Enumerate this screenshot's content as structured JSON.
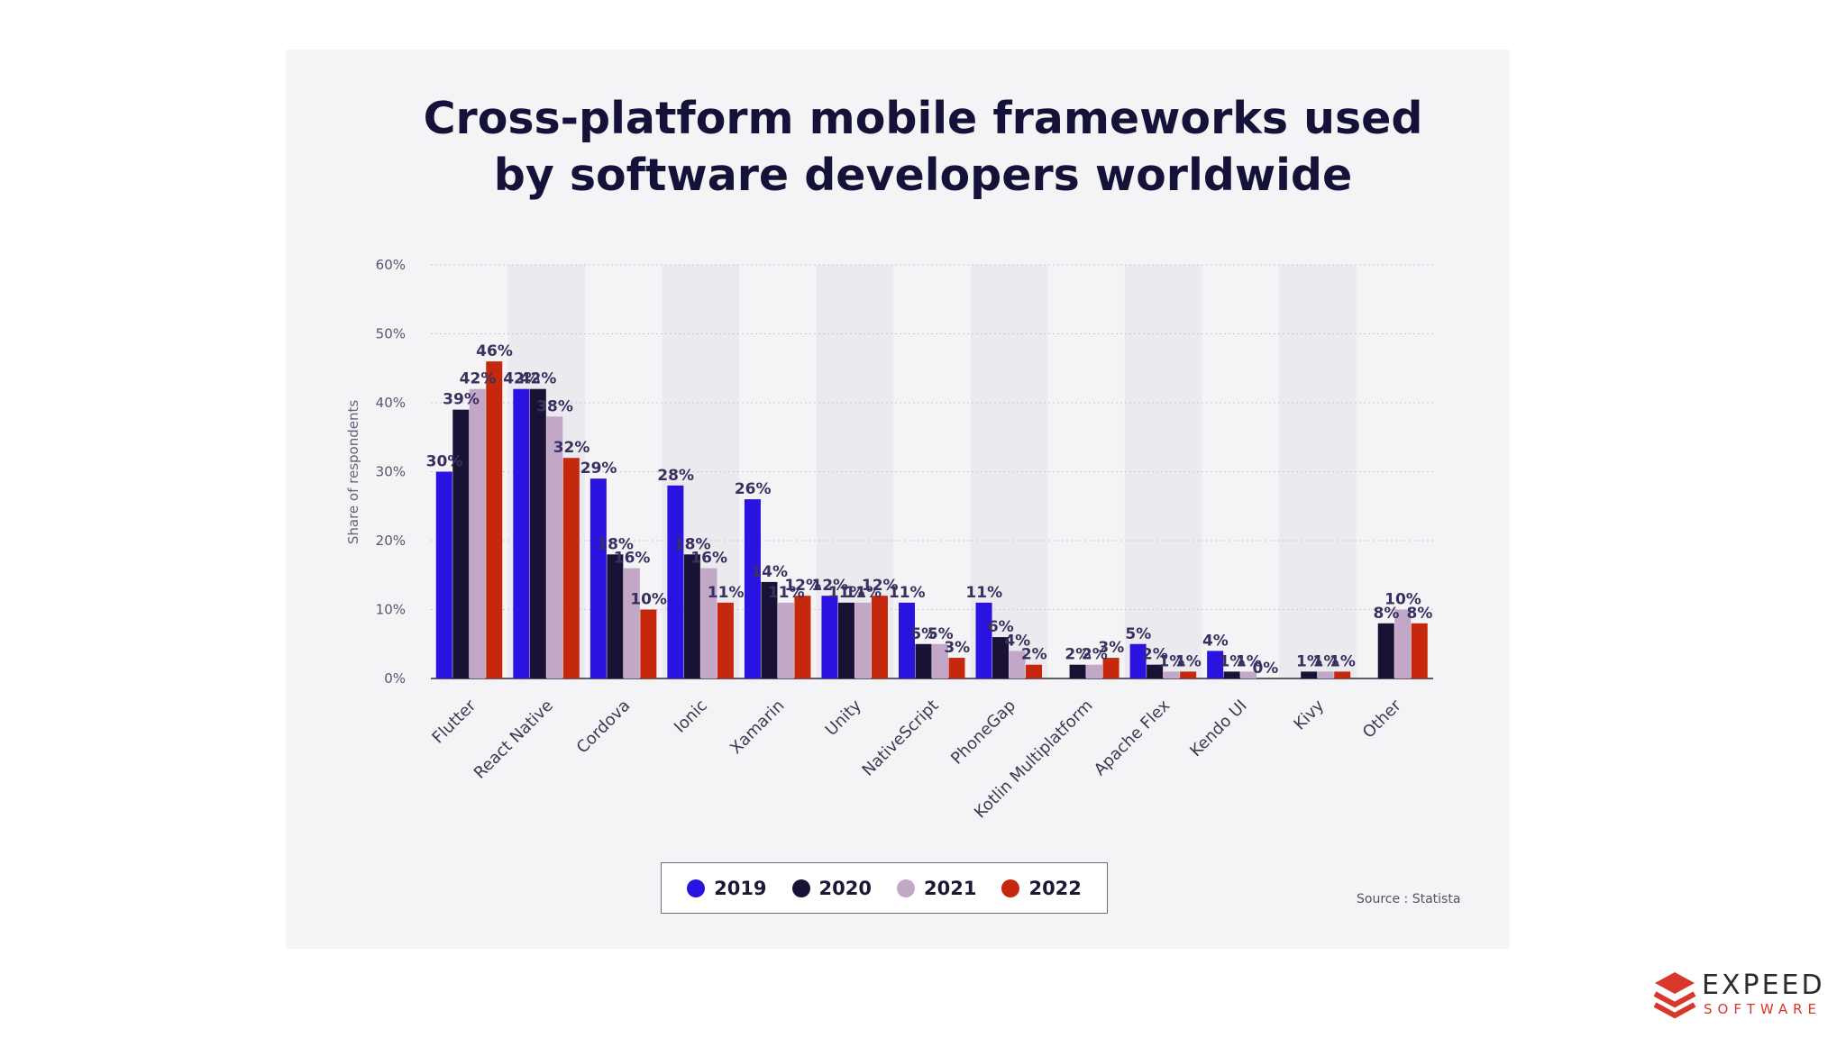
{
  "chart_data": {
    "type": "bar",
    "title": "Cross-platform mobile frameworks used by software developers worldwide",
    "title_lines": [
      "Cross-platform mobile frameworks used",
      "by software developers worldwide"
    ],
    "ylabel": "Share of respondents",
    "ylim": [
      0,
      60
    ],
    "yticks": [
      "0%",
      "10%",
      "20%",
      "30%",
      "40%",
      "50%",
      "60%"
    ],
    "grid": true,
    "legend_position": "bottom",
    "categories": [
      "Flutter",
      "React Native",
      "Cordova",
      "Ionic",
      "Xamarin",
      "Unity",
      "NativeScript",
      "PhoneGap",
      "Kotlin Multiplatform",
      "Apache Flex",
      "Kendo UI",
      "Kivy",
      "Other"
    ],
    "series": [
      {
        "name": "2019",
        "color": "#2a12e0",
        "values": [
          30,
          42,
          29,
          28,
          26,
          12,
          11,
          11,
          null,
          5,
          4,
          null,
          null
        ]
      },
      {
        "name": "2020",
        "color": "#1a1235",
        "values": [
          39,
          42,
          18,
          18,
          14,
          11,
          5,
          6,
          2,
          2,
          1,
          1,
          8
        ]
      },
      {
        "name": "2021",
        "color": "#c2a8c6",
        "values": [
          42,
          38,
          16,
          16,
          11,
          11,
          5,
          4,
          2,
          1,
          1,
          1,
          10
        ]
      },
      {
        "name": "2022",
        "color": "#c5280c",
        "values": [
          46,
          32,
          10,
          11,
          12,
          12,
          3,
          2,
          3,
          1,
          0,
          1,
          8
        ]
      }
    ]
  },
  "source": "Source : Statista",
  "logo": {
    "word": "EXPEED",
    "sub": "SOFTWARE"
  }
}
